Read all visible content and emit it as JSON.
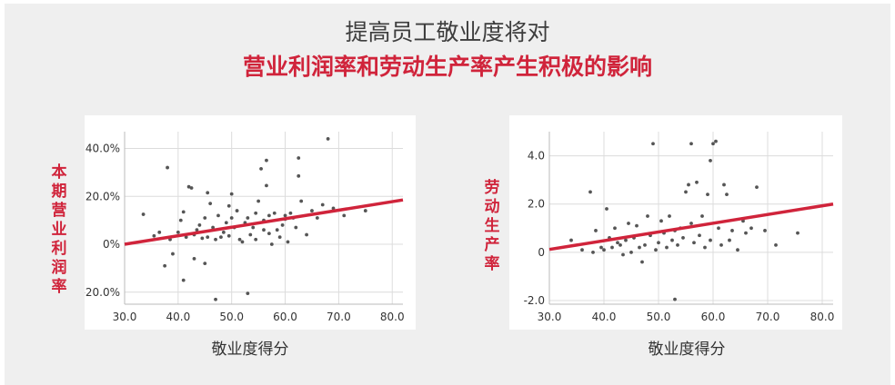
{
  "title": {
    "line1": "提高员工敬业度将对",
    "line2": "营业利润率和劳动生产率产生积极的影响"
  },
  "colors": {
    "accent": "#d0243b",
    "point": "#555555",
    "grid": "#dcdcdc"
  },
  "chart_data": [
    {
      "type": "scatter",
      "ylabel": "本期营业利润率",
      "xlabel": "敬业度得分",
      "xlim": [
        30,
        82
      ],
      "ylim": [
        -25,
        47
      ],
      "xticks": [
        30,
        40,
        50,
        60,
        70,
        80
      ],
      "xtick_labels": [
        "30.0",
        "40.0",
        "50.0",
        "60.0",
        "70.0",
        "80.0"
      ],
      "yticks": [
        -20,
        0,
        20,
        40
      ],
      "ytick_labels": [
        "-20.0%",
        "0%",
        "20.0%",
        "40.0%"
      ],
      "grid": true,
      "trendline": {
        "x": [
          30,
          82
        ],
        "y": [
          0,
          18.5
        ]
      },
      "points": [
        [
          33.5,
          12.5
        ],
        [
          35.5,
          3.5
        ],
        [
          36.5,
          5.0
        ],
        [
          37.5,
          -9.0
        ],
        [
          38.0,
          32.0
        ],
        [
          38.5,
          2.0
        ],
        [
          39.0,
          -4.0
        ],
        [
          40.0,
          5.0
        ],
        [
          40.5,
          10.0
        ],
        [
          41.0,
          -15.0
        ],
        [
          41.0,
          13.5
        ],
        [
          41.5,
          3.0
        ],
        [
          42.0,
          24.0
        ],
        [
          42.5,
          23.5
        ],
        [
          43.0,
          -6.0
        ],
        [
          43.0,
          4.0
        ],
        [
          43.5,
          6.0
        ],
        [
          44.0,
          8.0
        ],
        [
          44.5,
          2.5
        ],
        [
          45.0,
          11.0
        ],
        [
          45.0,
          -8.0
        ],
        [
          45.5,
          21.5
        ],
        [
          45.5,
          3.0
        ],
        [
          46.0,
          17.0
        ],
        [
          46.5,
          7.0
        ],
        [
          47.0,
          2.0
        ],
        [
          47.0,
          -23.0
        ],
        [
          47.5,
          12.0
        ],
        [
          48.0,
          3.0
        ],
        [
          48.5,
          5.0
        ],
        [
          49.0,
          9.0
        ],
        [
          49.5,
          16.0
        ],
        [
          49.5,
          3.5
        ],
        [
          50.0,
          21.0
        ],
        [
          50.0,
          11.0
        ],
        [
          50.5,
          7.0
        ],
        [
          51.0,
          14.0
        ],
        [
          51.5,
          2.0
        ],
        [
          52.0,
          1.0
        ],
        [
          52.5,
          9.0
        ],
        [
          53.0,
          11.0
        ],
        [
          53.0,
          -20.5
        ],
        [
          53.5,
          4.0
        ],
        [
          54.0,
          7.0
        ],
        [
          54.5,
          13.0
        ],
        [
          54.5,
          2.0
        ],
        [
          55.0,
          18.0
        ],
        [
          55.5,
          31.5
        ],
        [
          56.0,
          10.0
        ],
        [
          56.0,
          6.0
        ],
        [
          56.5,
          35.0
        ],
        [
          56.5,
          24.5
        ],
        [
          57.0,
          12.0
        ],
        [
          57.0,
          4.5
        ],
        [
          57.5,
          0.0
        ],
        [
          58.0,
          13.0
        ],
        [
          58.5,
          6.0
        ],
        [
          59.0,
          3.0
        ],
        [
          59.5,
          8.0
        ],
        [
          60.0,
          10.5
        ],
        [
          60.0,
          12.0
        ],
        [
          60.5,
          1.0
        ],
        [
          61.0,
          13.0
        ],
        [
          61.5,
          11.0
        ],
        [
          62.0,
          7.0
        ],
        [
          62.5,
          36.0
        ],
        [
          62.5,
          28.5
        ],
        [
          63.0,
          18.0
        ],
        [
          64.0,
          4.0
        ],
        [
          65.0,
          14.0
        ],
        [
          66.0,
          11.0
        ],
        [
          67.0,
          16.5
        ],
        [
          68.0,
          44.0
        ],
        [
          69.0,
          15.0
        ],
        [
          71.0,
          12.0
        ],
        [
          75.0,
          14.0
        ]
      ]
    },
    {
      "type": "scatter",
      "ylabel": "劳动生产率",
      "xlabel": "敬业度得分",
      "xlim": [
        30,
        82
      ],
      "ylim": [
        -2.15,
        5.0
      ],
      "xticks": [
        30,
        40,
        50,
        60,
        70,
        80
      ],
      "xtick_labels": [
        "30.0",
        "40.0",
        "50.0",
        "60.0",
        "70.0",
        "80.0"
      ],
      "yticks": [
        -2,
        0,
        2,
        4
      ],
      "ytick_labels": [
        "-2.0",
        "0",
        "2.0",
        "4.0"
      ],
      "grid": true,
      "trendline": {
        "x": [
          30,
          82
        ],
        "y": [
          0.12,
          2.0
        ]
      },
      "points": [
        [
          34.0,
          0.5
        ],
        [
          36.0,
          0.1
        ],
        [
          37.5,
          2.5
        ],
        [
          38.0,
          0.0
        ],
        [
          38.5,
          0.9
        ],
        [
          39.5,
          0.2
        ],
        [
          40.0,
          0.1
        ],
        [
          40.5,
          1.8
        ],
        [
          41.0,
          0.6
        ],
        [
          41.5,
          0.2
        ],
        [
          42.0,
          1.0
        ],
        [
          42.5,
          0.4
        ],
        [
          43.0,
          0.3
        ],
        [
          43.5,
          -0.1
        ],
        [
          44.0,
          0.5
        ],
        [
          44.5,
          1.2
        ],
        [
          45.0,
          0.0
        ],
        [
          45.5,
          0.6
        ],
        [
          46.0,
          1.1
        ],
        [
          46.5,
          0.2
        ],
        [
          47.0,
          -0.4
        ],
        [
          47.5,
          0.3
        ],
        [
          48.0,
          1.5
        ],
        [
          48.5,
          0.7
        ],
        [
          49.0,
          4.5
        ],
        [
          49.5,
          0.1
        ],
        [
          50.0,
          0.4
        ],
        [
          50.5,
          1.3
        ],
        [
          51.0,
          0.8
        ],
        [
          51.5,
          0.2
        ],
        [
          52.0,
          1.5
        ],
        [
          52.5,
          0.5
        ],
        [
          53.0,
          0.9
        ],
        [
          53.0,
          -1.95
        ],
        [
          53.5,
          0.3
        ],
        [
          54.0,
          1.0
        ],
        [
          54.5,
          0.6
        ],
        [
          55.0,
          2.5
        ],
        [
          55.5,
          2.8
        ],
        [
          56.0,
          4.5
        ],
        [
          56.0,
          1.2
        ],
        [
          56.5,
          0.4
        ],
        [
          57.0,
          2.9
        ],
        [
          57.5,
          0.7
        ],
        [
          58.0,
          1.5
        ],
        [
          58.5,
          0.2
        ],
        [
          59.0,
          2.4
        ],
        [
          59.5,
          3.8
        ],
        [
          59.5,
          0.5
        ],
        [
          60.0,
          4.5
        ],
        [
          60.5,
          4.6
        ],
        [
          61.0,
          1.0
        ],
        [
          61.5,
          0.3
        ],
        [
          62.0,
          2.8
        ],
        [
          62.5,
          2.4
        ],
        [
          63.0,
          0.5
        ],
        [
          63.5,
          0.9
        ],
        [
          64.5,
          0.1
        ],
        [
          65.5,
          1.3
        ],
        [
          66.0,
          0.8
        ],
        [
          67.0,
          1.0
        ],
        [
          68.0,
          2.7
        ],
        [
          69.5,
          0.9
        ],
        [
          71.5,
          0.3
        ],
        [
          75.5,
          0.8
        ]
      ]
    }
  ]
}
